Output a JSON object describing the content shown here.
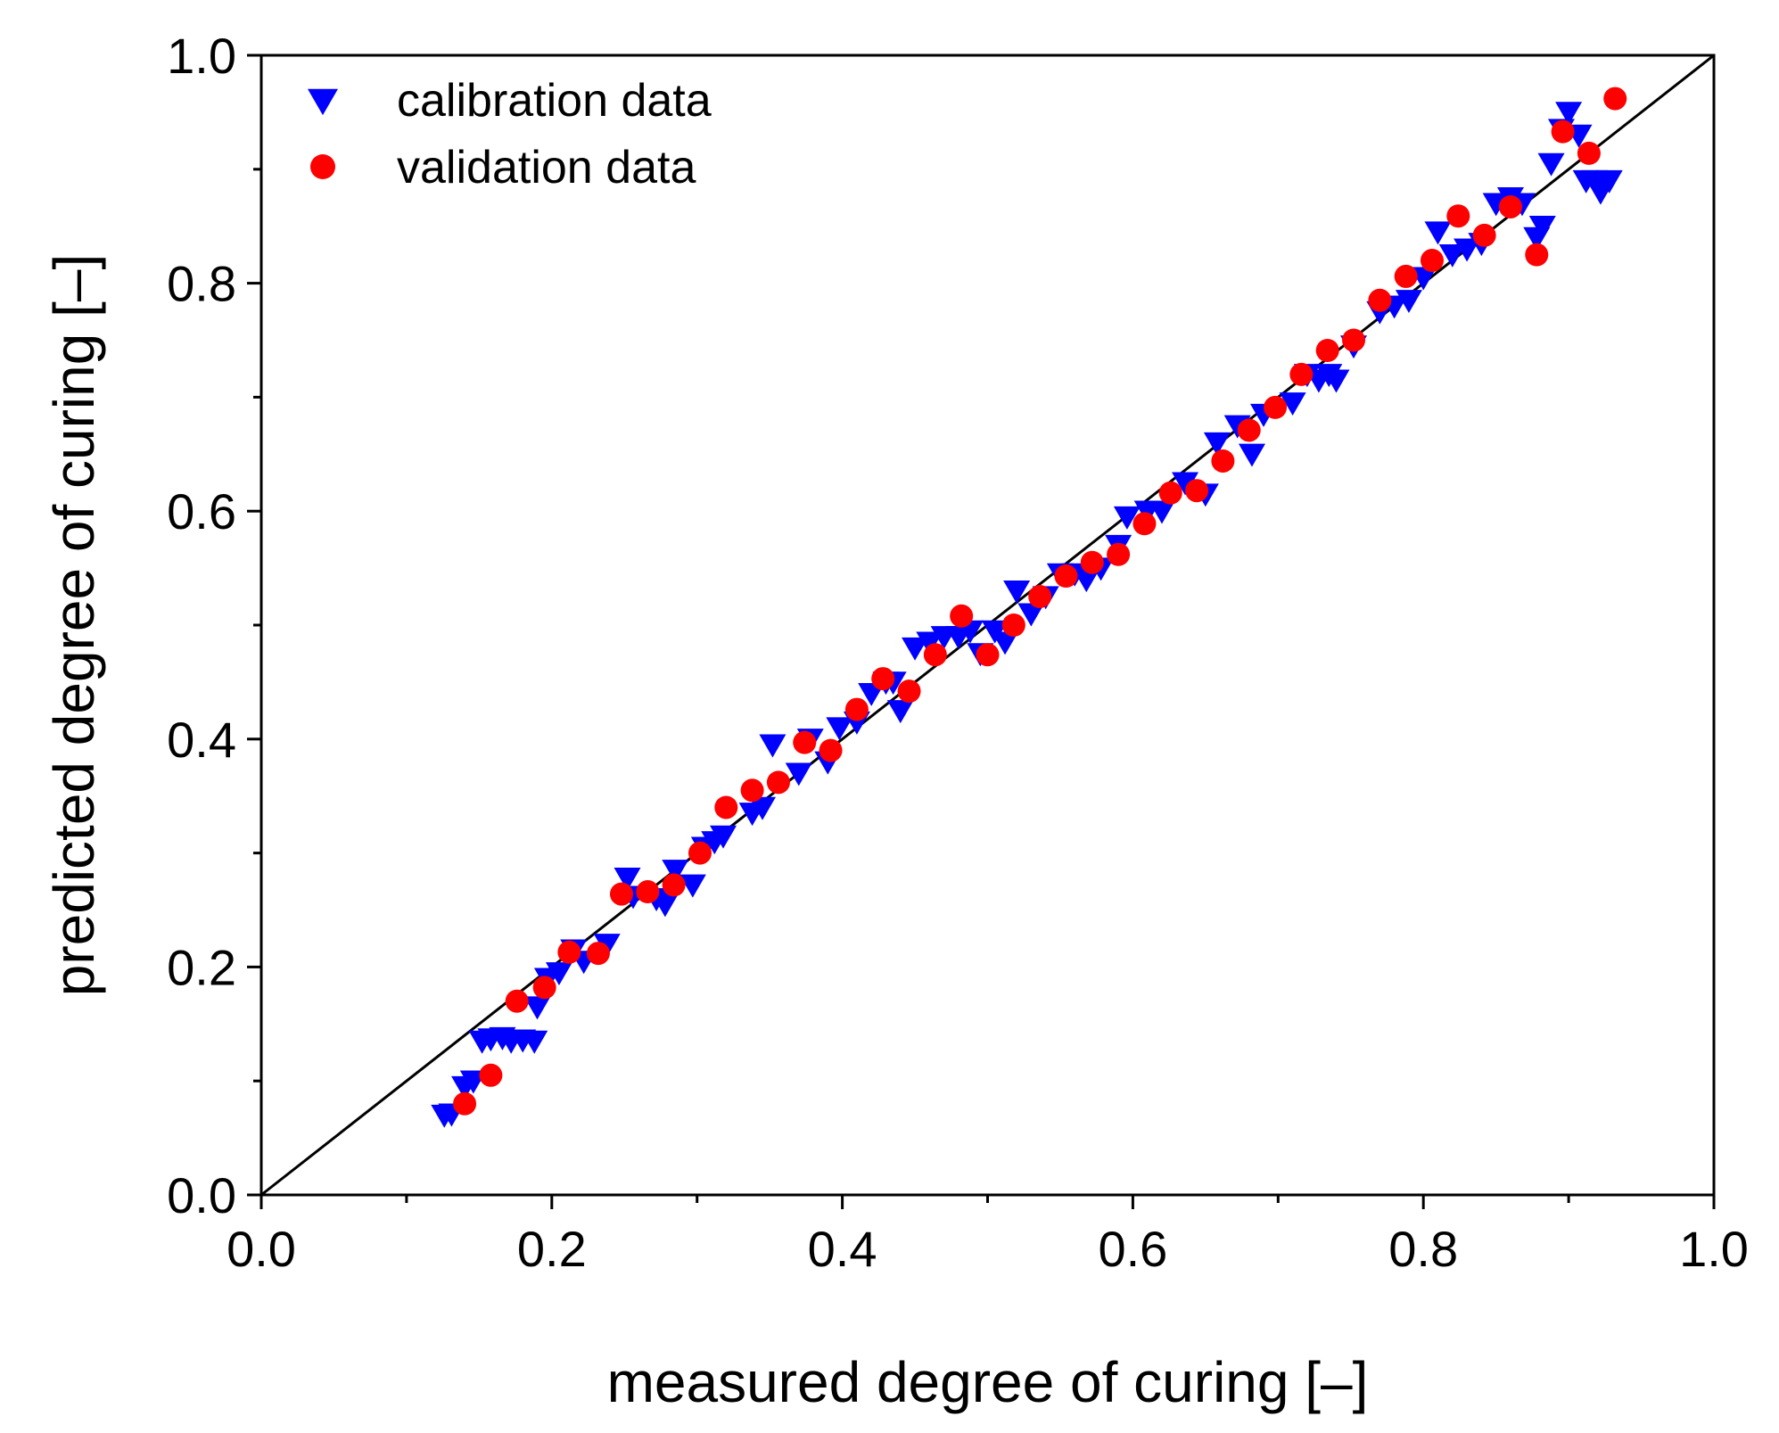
{
  "chart_data": {
    "type": "scatter",
    "xlabel": "measured degree of curing [–]",
    "ylabel": "predicted degree of curing [–]",
    "xlim": [
      0.0,
      1.0
    ],
    "ylim": [
      0.0,
      1.0
    ],
    "x_tick_labels": [
      "0.0",
      "0.2",
      "0.4",
      "0.6",
      "0.8",
      "1.0"
    ],
    "y_tick_labels": [
      "0.0",
      "0.2",
      "0.4",
      "0.6",
      "0.8",
      "1.0"
    ],
    "grid": false,
    "legend_position": "top-left",
    "reference_line": {
      "from": [
        0,
        0
      ],
      "to": [
        1,
        1
      ],
      "color": "#000000"
    },
    "series": [
      {
        "name": "calibration data",
        "marker": "triangle-down",
        "color": "#0000ff",
        "x": [
          0.126,
          0.131,
          0.14,
          0.146,
          0.152,
          0.158,
          0.166,
          0.172,
          0.18,
          0.188,
          0.19,
          0.197,
          0.205,
          0.215,
          0.222,
          0.238,
          0.252,
          0.256,
          0.272,
          0.278,
          0.285,
          0.297,
          0.305,
          0.312,
          0.318,
          0.338,
          0.345,
          0.352,
          0.37,
          0.378,
          0.39,
          0.398,
          0.41,
          0.42,
          0.43,
          0.435,
          0.44,
          0.45,
          0.46,
          0.47,
          0.48,
          0.488,
          0.495,
          0.505,
          0.512,
          0.52,
          0.53,
          0.54,
          0.55,
          0.56,
          0.568,
          0.578,
          0.59,
          0.596,
          0.61,
          0.62,
          0.636,
          0.65,
          0.658,
          0.672,
          0.682,
          0.69,
          0.71,
          0.72,
          0.728,
          0.735,
          0.74,
          0.752,
          0.77,
          0.78,
          0.79,
          0.8,
          0.81,
          0.82,
          0.83,
          0.84,
          0.85,
          0.86,
          0.868,
          0.878,
          0.882,
          0.888,
          0.895,
          0.9,
          0.907,
          0.912,
          0.918,
          0.92,
          0.922,
          0.928
        ],
        "y": [
          0.07,
          0.071,
          0.095,
          0.1,
          0.135,
          0.137,
          0.138,
          0.135,
          0.136,
          0.135,
          0.165,
          0.19,
          0.195,
          0.215,
          0.205,
          0.22,
          0.278,
          0.262,
          0.26,
          0.255,
          0.285,
          0.272,
          0.305,
          0.31,
          0.315,
          0.335,
          0.34,
          0.395,
          0.37,
          0.4,
          0.38,
          0.41,
          0.415,
          0.44,
          0.45,
          0.45,
          0.425,
          0.48,
          0.485,
          0.49,
          0.49,
          0.495,
          0.475,
          0.495,
          0.485,
          0.53,
          0.51,
          0.525,
          0.545,
          0.545,
          0.54,
          0.55,
          0.57,
          0.595,
          0.6,
          0.6,
          0.625,
          0.615,
          0.66,
          0.675,
          0.65,
          0.685,
          0.695,
          0.72,
          0.715,
          0.72,
          0.715,
          0.745,
          0.775,
          0.78,
          0.785,
          0.805,
          0.845,
          0.825,
          0.83,
          0.835,
          0.87,
          0.875,
          0.87,
          0.84,
          0.85,
          0.905,
          0.935,
          0.95,
          0.93,
          0.89,
          0.89,
          0.885,
          0.88,
          0.89
        ]
      },
      {
        "name": "validation data",
        "marker": "circle",
        "color": "#ff0000",
        "x": [
          0.14,
          0.158,
          0.176,
          0.195,
          0.212,
          0.232,
          0.248,
          0.266,
          0.284,
          0.302,
          0.32,
          0.338,
          0.356,
          0.374,
          0.392,
          0.41,
          0.428,
          0.446,
          0.464,
          0.482,
          0.5,
          0.518,
          0.536,
          0.554,
          0.572,
          0.59,
          0.608,
          0.626,
          0.644,
          0.662,
          0.68,
          0.698,
          0.716,
          0.734,
          0.752,
          0.77,
          0.788,
          0.806,
          0.824,
          0.842,
          0.86,
          0.878,
          0.896,
          0.914,
          0.932
        ],
        "y": [
          0.08,
          0.105,
          0.17,
          0.182,
          0.213,
          0.212,
          0.264,
          0.266,
          0.272,
          0.3,
          0.34,
          0.355,
          0.362,
          0.397,
          0.39,
          0.426,
          0.453,
          0.442,
          0.474,
          0.508,
          0.474,
          0.5,
          0.525,
          0.543,
          0.555,
          0.562,
          0.589,
          0.616,
          0.618,
          0.644,
          0.671,
          0.691,
          0.72,
          0.741,
          0.75,
          0.785,
          0.806,
          0.82,
          0.859,
          0.842,
          0.867,
          0.825,
          0.933,
          0.914,
          0.962
        ]
      }
    ]
  }
}
